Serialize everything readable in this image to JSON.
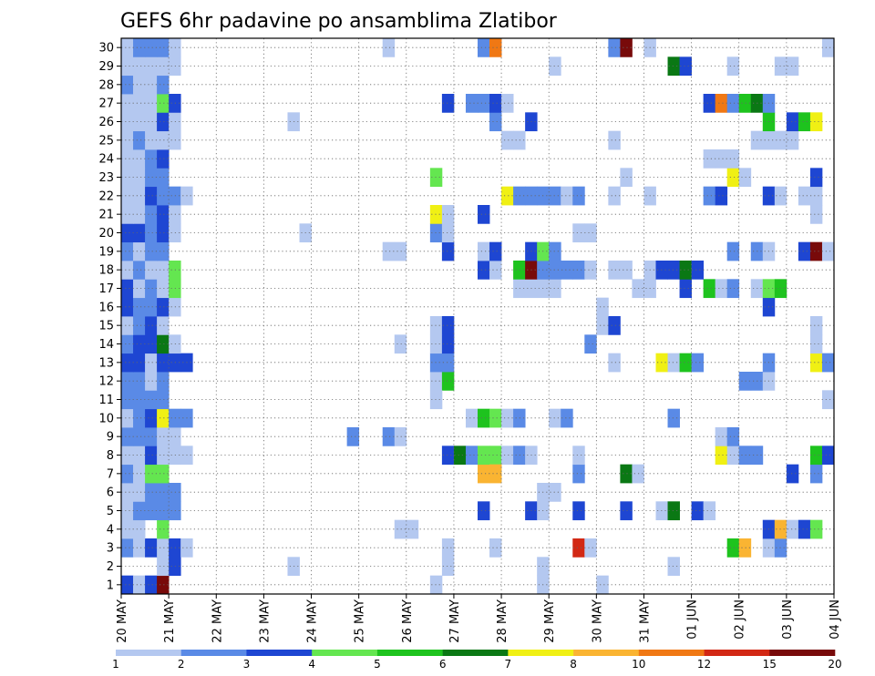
{
  "chart_data": {
    "type": "heatmap",
    "title": "GEFS 6hr padavine po ansamblima Zlatibor",
    "x_tick_labels": [
      "20 MAY",
      "21 MAY",
      "22 MAY",
      "23 MAY",
      "24 MAY",
      "25 MAY",
      "26 MAY",
      "27 MAY",
      "28 MAY",
      "29 MAY",
      "30 MAY",
      "31 MAY",
      "01 JUN",
      "02 JUN",
      "03 JUN",
      "04 JUN"
    ],
    "y_tick_labels": [
      "1",
      "2",
      "3",
      "4",
      "5",
      "6",
      "7",
      "8",
      "9",
      "10",
      "11",
      "12",
      "13",
      "14",
      "15",
      "16",
      "17",
      "18",
      "19",
      "20",
      "21",
      "22",
      "23",
      "24",
      "25",
      "26",
      "27",
      "28",
      "29",
      "30"
    ],
    "x_unit": "6-hour steps from 20 MAY 00z",
    "n_steps": 60,
    "colorbar_labels": [
      "1",
      "2",
      "3",
      "4",
      "5",
      "6",
      "7",
      "8",
      "10",
      "12",
      "15",
      "20"
    ],
    "colors": [
      "#b4c8f0",
      "#5a8ae6",
      "#1e46d2",
      "#64e650",
      "#1ec31e",
      "#0a7814",
      "#f0f014",
      "#fab432",
      "#f07814",
      "#d22814",
      "#780a0a"
    ],
    "grid": "dotted",
    "cells": [
      [
        1,
        1,
        2
      ],
      [
        1,
        2,
        0
      ],
      [
        1,
        3,
        2
      ],
      [
        1,
        4,
        10
      ],
      [
        2,
        4,
        0
      ],
      [
        2,
        5,
        2
      ],
      [
        3,
        1,
        1
      ],
      [
        3,
        2,
        0
      ],
      [
        3,
        3,
        2
      ],
      [
        3,
        4,
        0
      ],
      [
        3,
        5,
        2
      ],
      [
        3,
        6,
        0
      ],
      [
        4,
        1,
        0
      ],
      [
        4,
        2,
        0
      ],
      [
        4,
        4,
        3
      ],
      [
        5,
        1,
        0
      ],
      [
        5,
        2,
        1
      ],
      [
        5,
        3,
        1
      ],
      [
        5,
        4,
        1
      ],
      [
        5,
        5,
        1
      ],
      [
        6,
        1,
        0
      ],
      [
        6,
        2,
        0
      ],
      [
        6,
        3,
        1
      ],
      [
        6,
        4,
        1
      ],
      [
        6,
        5,
        1
      ],
      [
        7,
        1,
        1
      ],
      [
        7,
        2,
        0
      ],
      [
        7,
        3,
        3
      ],
      [
        7,
        4,
        3
      ],
      [
        8,
        1,
        0
      ],
      [
        8,
        2,
        0
      ],
      [
        8,
        3,
        2
      ],
      [
        8,
        4,
        0
      ],
      [
        8,
        5,
        0
      ],
      [
        8,
        6,
        0
      ],
      [
        9,
        1,
        1
      ],
      [
        9,
        2,
        1
      ],
      [
        9,
        3,
        1
      ],
      [
        9,
        4,
        0
      ],
      [
        9,
        5,
        0
      ],
      [
        10,
        1,
        0
      ],
      [
        10,
        2,
        1
      ],
      [
        10,
        3,
        2
      ],
      [
        10,
        4,
        6
      ],
      [
        10,
        5,
        1
      ],
      [
        10,
        6,
        1
      ],
      [
        11,
        1,
        1
      ],
      [
        11,
        2,
        1
      ],
      [
        11,
        3,
        1
      ],
      [
        11,
        4,
        1
      ],
      [
        12,
        1,
        1
      ],
      [
        12,
        2,
        1
      ],
      [
        12,
        3,
        0
      ],
      [
        12,
        4,
        1
      ],
      [
        13,
        1,
        2
      ],
      [
        13,
        2,
        2
      ],
      [
        13,
        3,
        0
      ],
      [
        13,
        4,
        2
      ],
      [
        13,
        5,
        2
      ],
      [
        13,
        6,
        2
      ],
      [
        14,
        1,
        1
      ],
      [
        14,
        2,
        2
      ],
      [
        14,
        3,
        2
      ],
      [
        14,
        4,
        5
      ],
      [
        14,
        5,
        0
      ],
      [
        15,
        1,
        0
      ],
      [
        15,
        2,
        1
      ],
      [
        15,
        3,
        2
      ],
      [
        15,
        4,
        0
      ],
      [
        16,
        1,
        2
      ],
      [
        16,
        2,
        1
      ],
      [
        16,
        3,
        1
      ],
      [
        16,
        4,
        2
      ],
      [
        16,
        5,
        0
      ],
      [
        17,
        1,
        2
      ],
      [
        17,
        2,
        0
      ],
      [
        17,
        3,
        1
      ],
      [
        17,
        4,
        0
      ],
      [
        17,
        5,
        3
      ],
      [
        18,
        1,
        0
      ],
      [
        18,
        2,
        1
      ],
      [
        18,
        3,
        0
      ],
      [
        18,
        4,
        0
      ],
      [
        18,
        5,
        3
      ],
      [
        19,
        1,
        1
      ],
      [
        19,
        2,
        0
      ],
      [
        19,
        3,
        1
      ],
      [
        19,
        4,
        1
      ],
      [
        20,
        1,
        2
      ],
      [
        20,
        2,
        2
      ],
      [
        20,
        3,
        1
      ],
      [
        20,
        4,
        2
      ],
      [
        20,
        5,
        0
      ],
      [
        21,
        1,
        0
      ],
      [
        21,
        2,
        0
      ],
      [
        21,
        3,
        1
      ],
      [
        21,
        4,
        2
      ],
      [
        21,
        5,
        0
      ],
      [
        22,
        1,
        0
      ],
      [
        22,
        2,
        0
      ],
      [
        22,
        3,
        2
      ],
      [
        22,
        4,
        1
      ],
      [
        22,
        5,
        1
      ],
      [
        22,
        6,
        0
      ],
      [
        23,
        1,
        0
      ],
      [
        23,
        2,
        0
      ],
      [
        23,
        3,
        1
      ],
      [
        23,
        4,
        1
      ],
      [
        24,
        1,
        0
      ],
      [
        24,
        2,
        0
      ],
      [
        24,
        3,
        1
      ],
      [
        24,
        4,
        2
      ],
      [
        25,
        1,
        0
      ],
      [
        25,
        2,
        1
      ],
      [
        25,
        3,
        0
      ],
      [
        25,
        4,
        0
      ],
      [
        25,
        5,
        0
      ],
      [
        26,
        1,
        0
      ],
      [
        26,
        2,
        0
      ],
      [
        26,
        3,
        0
      ],
      [
        26,
        4,
        2
      ],
      [
        26,
        5,
        0
      ],
      [
        27,
        1,
        0
      ],
      [
        27,
        2,
        0
      ],
      [
        27,
        3,
        0
      ],
      [
        27,
        4,
        3
      ],
      [
        27,
        5,
        2
      ],
      [
        28,
        1,
        1
      ],
      [
        28,
        2,
        0
      ],
      [
        28,
        3,
        0
      ],
      [
        28,
        4,
        1
      ],
      [
        29,
        1,
        0
      ],
      [
        29,
        2,
        0
      ],
      [
        29,
        3,
        0
      ],
      [
        29,
        4,
        0
      ],
      [
        29,
        5,
        0
      ],
      [
        30,
        1,
        0
      ],
      [
        30,
        2,
        1
      ],
      [
        30,
        3,
        1
      ],
      [
        30,
        4,
        1
      ],
      [
        30,
        5,
        0
      ],
      [
        2,
        15,
        0
      ],
      [
        26,
        15,
        0
      ],
      [
        20,
        16,
        0
      ],
      [
        14,
        24,
        0
      ],
      [
        9,
        23,
        1
      ],
      [
        9,
        24,
        0
      ],
      [
        19,
        23,
        0
      ],
      [
        19,
        24,
        0
      ],
      [
        4,
        24,
        0
      ],
      [
        4,
        25,
        0
      ],
      [
        30,
        23,
        0
      ],
      [
        1,
        27,
        0
      ],
      [
        2,
        28,
        0
      ],
      [
        3,
        28,
        0
      ],
      [
        7,
        31,
        7
      ],
      [
        8,
        28,
        2
      ],
      [
        8,
        29,
        5
      ],
      [
        8,
        30,
        1
      ],
      [
        8,
        31,
        3
      ],
      [
        8,
        32,
        3
      ],
      [
        8,
        33,
        0
      ],
      [
        8,
        34,
        1
      ],
      [
        8,
        35,
        0
      ],
      [
        10,
        30,
        0
      ],
      [
        10,
        31,
        4
      ],
      [
        10,
        32,
        3
      ],
      [
        10,
        33,
        0
      ],
      [
        10,
        34,
        1
      ],
      [
        12,
        27,
        0
      ],
      [
        12,
        28,
        4
      ],
      [
        13,
        27,
        1
      ],
      [
        13,
        28,
        1
      ],
      [
        14,
        27,
        0
      ],
      [
        14,
        28,
        2
      ],
      [
        15,
        27,
        0
      ],
      [
        15,
        28,
        2
      ],
      [
        17,
        34,
        0
      ],
      [
        17,
        35,
        0
      ],
      [
        17,
        36,
        0
      ],
      [
        17,
        37,
        0
      ],
      [
        18,
        31,
        2
      ],
      [
        18,
        32,
        0
      ],
      [
        18,
        34,
        4
      ],
      [
        18,
        35,
        10
      ],
      [
        18,
        36,
        1
      ],
      [
        18,
        37,
        1
      ],
      [
        18,
        38,
        1
      ],
      [
        18,
        39,
        1
      ],
      [
        18,
        40,
        0
      ],
      [
        19,
        28,
        2
      ],
      [
        19,
        31,
        0
      ],
      [
        19,
        32,
        2
      ],
      [
        19,
        35,
        2
      ],
      [
        19,
        36,
        3
      ],
      [
        19,
        37,
        1
      ],
      [
        20,
        27,
        1
      ],
      [
        20,
        28,
        0
      ],
      [
        21,
        27,
        6
      ],
      [
        21,
        28,
        0
      ],
      [
        21,
        31,
        2
      ],
      [
        22,
        33,
        6
      ],
      [
        22,
        34,
        1
      ],
      [
        22,
        35,
        1
      ],
      [
        22,
        36,
        1
      ],
      [
        22,
        37,
        1
      ],
      [
        22,
        38,
        0
      ],
      [
        22,
        39,
        1
      ],
      [
        23,
        27,
        3
      ],
      [
        25,
        33,
        0
      ],
      [
        25,
        34,
        0
      ],
      [
        26,
        32,
        1
      ],
      [
        26,
        35,
        2
      ],
      [
        27,
        28,
        2
      ],
      [
        27,
        30,
        1
      ],
      [
        27,
        31,
        1
      ],
      [
        27,
        32,
        2
      ],
      [
        27,
        33,
        0
      ],
      [
        30,
        31,
        1
      ],
      [
        30,
        32,
        8
      ],
      [
        3,
        32,
        0
      ],
      [
        1,
        36,
        0
      ],
      [
        2,
        36,
        0
      ],
      [
        3,
        39,
        9
      ],
      [
        3,
        40,
        0
      ],
      [
        5,
        31,
        2
      ],
      [
        5,
        35,
        2
      ],
      [
        5,
        36,
        0
      ],
      [
        5,
        39,
        2
      ],
      [
        6,
        36,
        0
      ],
      [
        6,
        37,
        0
      ],
      [
        7,
        32,
        7
      ],
      [
        7,
        39,
        1
      ],
      [
        8,
        39,
        0
      ],
      [
        9,
        20,
        1
      ],
      [
        10,
        37,
        0
      ],
      [
        10,
        38,
        1
      ],
      [
        11,
        27,
        0
      ],
      [
        1,
        41,
        0
      ],
      [
        2,
        47,
        0
      ],
      [
        3,
        52,
        4
      ],
      [
        3,
        53,
        7
      ],
      [
        3,
        55,
        0
      ],
      [
        3,
        56,
        1
      ],
      [
        4,
        55,
        2
      ],
      [
        4,
        56,
        7
      ],
      [
        4,
        57,
        0
      ],
      [
        4,
        58,
        2
      ],
      [
        4,
        59,
        3
      ],
      [
        5,
        43,
        2
      ],
      [
        5,
        46,
        0
      ],
      [
        5,
        47,
        5
      ],
      [
        5,
        49,
        2
      ],
      [
        5,
        50,
        0
      ],
      [
        7,
        43,
        5
      ],
      [
        7,
        44,
        0
      ],
      [
        7,
        57,
        2
      ],
      [
        7,
        59,
        1
      ],
      [
        8,
        51,
        6
      ],
      [
        8,
        52,
        0
      ],
      [
        8,
        53,
        1
      ],
      [
        8,
        54,
        1
      ],
      [
        8,
        59,
        4
      ],
      [
        8,
        60,
        2
      ],
      [
        9,
        51,
        0
      ],
      [
        9,
        52,
        1
      ],
      [
        10,
        47,
        1
      ],
      [
        11,
        60,
        0
      ],
      [
        12,
        53,
        1
      ],
      [
        12,
        54,
        1
      ],
      [
        12,
        55,
        0
      ],
      [
        13,
        42,
        0
      ],
      [
        13,
        46,
        6
      ],
      [
        13,
        47,
        0
      ],
      [
        13,
        48,
        4
      ],
      [
        13,
        49,
        1
      ],
      [
        13,
        55,
        1
      ],
      [
        13,
        59,
        6
      ],
      [
        13,
        60,
        1
      ],
      [
        14,
        40,
        1
      ],
      [
        14,
        59,
        0
      ],
      [
        15,
        41,
        0
      ],
      [
        15,
        42,
        2
      ],
      [
        15,
        59,
        0
      ],
      [
        16,
        41,
        0
      ],
      [
        16,
        55,
        2
      ],
      [
        17,
        44,
        0
      ],
      [
        17,
        45,
        0
      ],
      [
        17,
        48,
        2
      ],
      [
        17,
        50,
        4
      ],
      [
        17,
        51,
        0
      ],
      [
        17,
        52,
        1
      ],
      [
        17,
        54,
        0
      ],
      [
        17,
        55,
        3
      ],
      [
        17,
        56,
        4
      ],
      [
        18,
        42,
        0
      ],
      [
        18,
        43,
        0
      ],
      [
        18,
        45,
        0
      ],
      [
        18,
        46,
        2
      ],
      [
        18,
        47,
        2
      ],
      [
        18,
        48,
        5
      ],
      [
        18,
        49,
        2
      ],
      [
        19,
        52,
        1
      ],
      [
        19,
        54,
        1
      ],
      [
        19,
        55,
        0
      ],
      [
        19,
        58,
        2
      ],
      [
        19,
        59,
        10
      ],
      [
        19,
        60,
        0
      ],
      [
        20,
        39,
        0
      ],
      [
        20,
        40,
        0
      ],
      [
        21,
        59,
        0
      ],
      [
        22,
        42,
        0
      ],
      [
        22,
        45,
        0
      ],
      [
        22,
        50,
        1
      ],
      [
        22,
        51,
        2
      ],
      [
        22,
        55,
        2
      ],
      [
        22,
        56,
        0
      ],
      [
        22,
        58,
        0
      ],
      [
        22,
        59,
        0
      ],
      [
        23,
        43,
        0
      ],
      [
        23,
        52,
        6
      ],
      [
        23,
        53,
        0
      ],
      [
        23,
        59,
        2
      ],
      [
        24,
        50,
        0
      ],
      [
        24,
        51,
        0
      ],
      [
        24,
        52,
        0
      ],
      [
        25,
        42,
        0
      ],
      [
        25,
        54,
        0
      ],
      [
        25,
        55,
        0
      ],
      [
        25,
        56,
        0
      ],
      [
        25,
        57,
        0
      ],
      [
        26,
        55,
        4
      ],
      [
        26,
        57,
        2
      ],
      [
        26,
        58,
        4
      ],
      [
        26,
        59,
        6
      ],
      [
        27,
        50,
        2
      ],
      [
        27,
        51,
        8
      ],
      [
        27,
        52,
        1
      ],
      [
        27,
        53,
        4
      ],
      [
        27,
        54,
        5
      ],
      [
        27,
        55,
        1
      ],
      [
        29,
        37,
        0
      ],
      [
        29,
        47,
        5
      ],
      [
        29,
        48,
        2
      ],
      [
        29,
        52,
        0
      ],
      [
        29,
        56,
        0
      ],
      [
        29,
        57,
        0
      ],
      [
        30,
        42,
        1
      ],
      [
        30,
        43,
        10
      ],
      [
        30,
        45,
        0
      ],
      [
        30,
        60,
        0
      ]
    ]
  }
}
